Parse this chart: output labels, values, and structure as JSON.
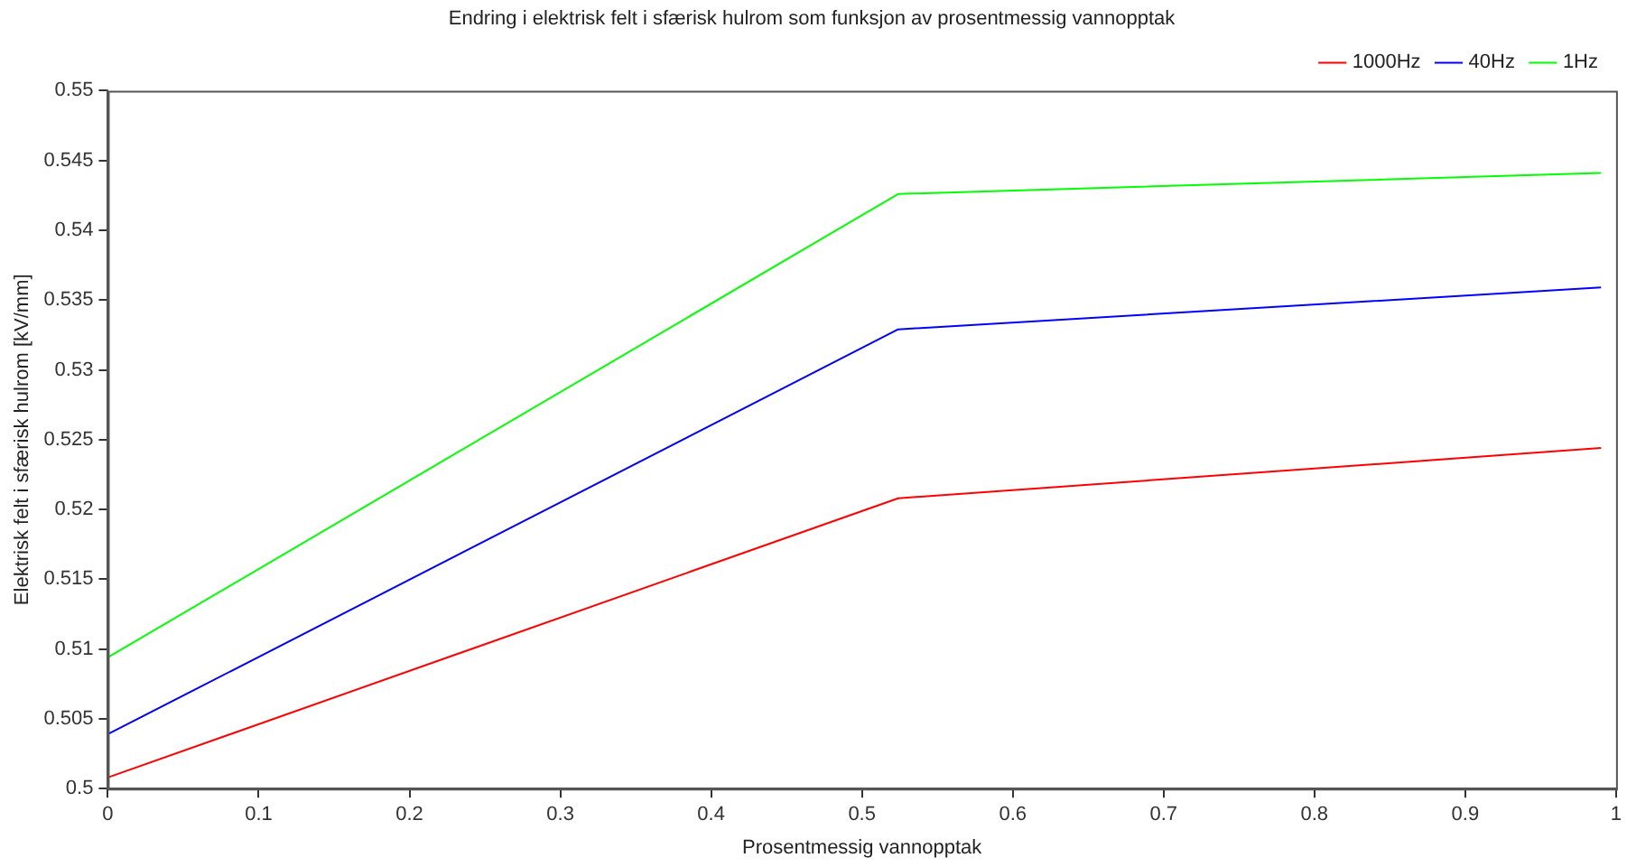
{
  "chart_data": {
    "type": "line",
    "title": "Endring i elektrisk felt i sfærisk hulrom som funksjon av prosentmessig vannopptak",
    "xlabel": "Prosentmessig vannopptak",
    "ylabel": "Elektrisk felt i sfærisk hulrom [kV/mm]",
    "x": [
      0,
      0.524,
      0.99
    ],
    "series": [
      {
        "name": "1000Hz",
        "color": "#ff0000",
        "values": [
          0.5008,
          0.5208,
          0.5244
        ]
      },
      {
        "name": "40Hz",
        "color": "#0000ff",
        "values": [
          0.5039,
          0.5329,
          0.5359
        ]
      },
      {
        "name": "1Hz",
        "color": "#00ff00",
        "values": [
          0.5094,
          0.5426,
          0.5441
        ]
      }
    ],
    "xlim": [
      0,
      1
    ],
    "xticks": [
      0,
      0.1,
      0.2,
      0.3,
      0.4,
      0.5,
      0.6,
      0.7,
      0.8,
      0.9,
      1
    ],
    "ylim": [
      0.5,
      0.55
    ],
    "yticks": [
      0.5,
      0.505,
      0.51,
      0.515,
      0.52,
      0.525,
      0.53,
      0.535,
      0.54,
      0.545,
      0.55
    ],
    "legend": "top right",
    "marker": "none",
    "line_style": "solid"
  }
}
